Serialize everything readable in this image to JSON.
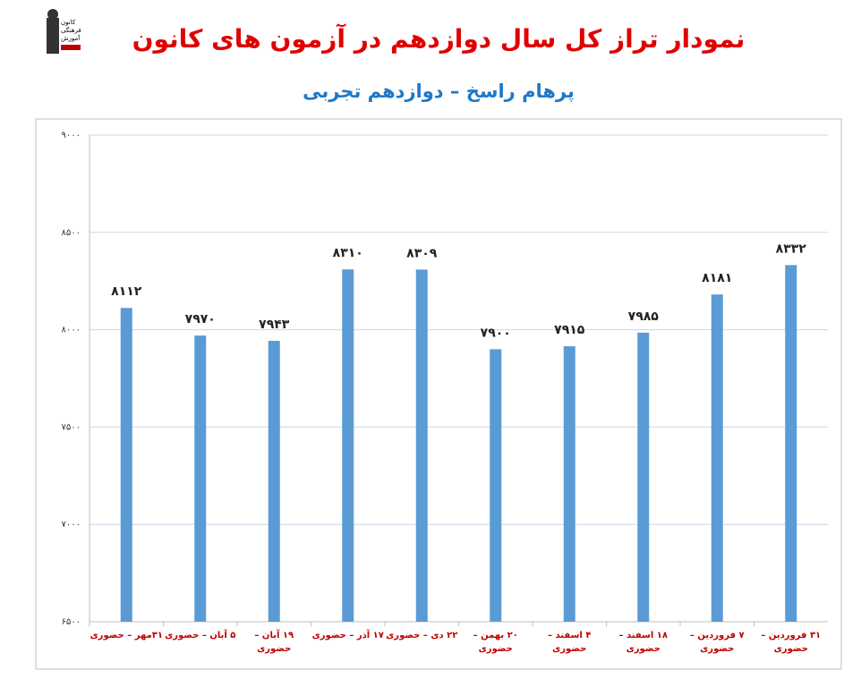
{
  "logo": {
    "lines": [
      "کانون",
      "فرهنگی",
      "آموزش"
    ]
  },
  "chart_data": {
    "type": "bar",
    "title": "نمودار تراز کل سال دوازدهم در آزمون های کانون",
    "subtitle": "پرهام راسخ – دوازدهم تجربی",
    "categories": [
      "۳۱مهر – حضوری",
      "۵ آبان – حضوری",
      "۱۹ آبان – حضوری",
      "۱۷ آذر – حضوری",
      "۲۲ دی – حضوری",
      "۲۰ بهمن – حضوری",
      "۴ اسفند – حضوری",
      "۱۸ اسفند – حضوری",
      "۷ فروردین – حضوری",
      "۳۱ فروردین – حضوری"
    ],
    "values": [
      8112,
      7970,
      7943,
      8310,
      8309,
      7900,
      7915,
      7985,
      8181,
      8332
    ],
    "value_labels": [
      "۸۱۱۲",
      "۷۹۷۰",
      "۷۹۴۳",
      "۸۳۱۰",
      "۸۳۰۹",
      "۷۹۰۰",
      "۷۹۱۵",
      "۷۹۸۵",
      "۸۱۸۱",
      "۸۳۳۲"
    ],
    "color": "#5b9bd5",
    "ylim": [
      6500,
      9000
    ],
    "yticks": [
      {
        "value": 6500,
        "label": "۶۵۰۰"
      },
      {
        "value": 7000,
        "label": "۷۰۰۰"
      },
      {
        "value": 7500,
        "label": "۷۵۰۰"
      },
      {
        "value": 8000,
        "label": "۸۰۰۰"
      },
      {
        "value": 8500,
        "label": "۸۵۰۰"
      },
      {
        "value": 9000,
        "label": "۹۰۰۰"
      }
    ],
    "grid": true
  }
}
